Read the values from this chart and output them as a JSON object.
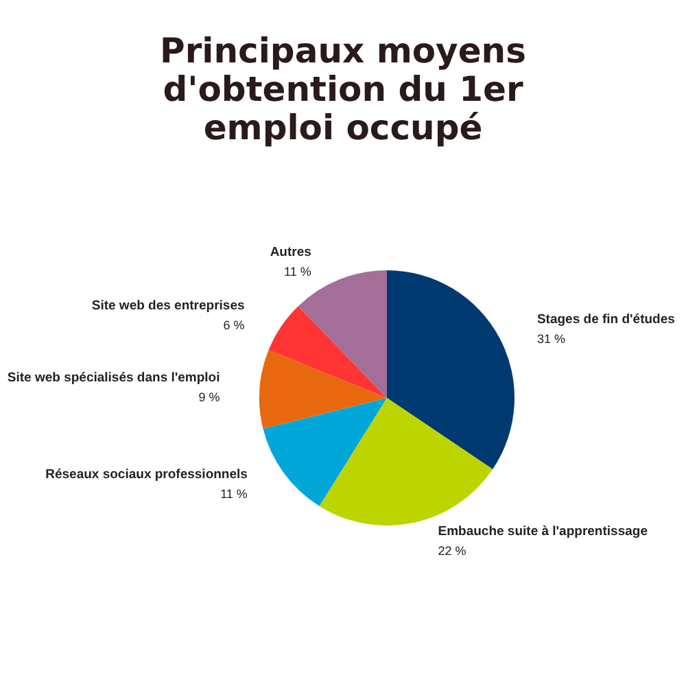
{
  "chart_data": {
    "type": "pie",
    "title": "Principaux moyens\nd'obtention du 1er\nemploi occupé",
    "categories": [
      "Stages de fin d'études",
      "Embauche suite à l'apprentissage",
      "Réseaux sociaux professionnels",
      "Site web spécialisés dans l'emploi",
      "Site web des entreprises",
      "Autres"
    ],
    "values": [
      31,
      22,
      11,
      9,
      6,
      11
    ],
    "value_labels": [
      "31 %",
      "22 %",
      "11 %",
      "9 %",
      "6 %",
      "11 %"
    ],
    "colors": [
      "#003a70",
      "#bcd400",
      "#00a7d8",
      "#e8680f",
      "#ff3535",
      "#a36f98"
    ],
    "legend": false
  }
}
